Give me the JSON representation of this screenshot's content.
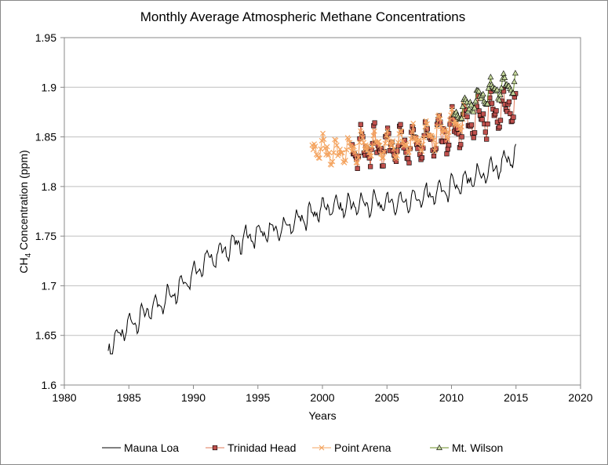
{
  "chart_data": {
    "type": "line",
    "title": "Monthly  Average Atmospheric Methane  Concentrations",
    "xlabel": "Years",
    "ylabel_prefix": "CH",
    "ylabel_subscript": "4",
    "ylabel_suffix": " Concentration  (ppm)",
    "xlim": [
      1980,
      2020
    ],
    "ylim": [
      1.6,
      1.95
    ],
    "x_ticks": [
      "1980",
      "1985",
      "1990",
      "1995",
      "2000",
      "2005",
      "2010",
      "2015",
      "2020"
    ],
    "y_ticks": [
      "1.6",
      "1.65",
      "1.7",
      "1.75",
      "1.8",
      "1.85",
      "1.9",
      "1.95"
    ],
    "grid": "horizontal",
    "legend_position": "bottom",
    "series": [
      {
        "name": "Mauna Loa",
        "color": "#000000",
        "marker": "none",
        "trend": [
          [
            1983.4,
            1.638
          ],
          [
            1985,
            1.66
          ],
          [
            1988,
            1.688
          ],
          [
            1991,
            1.725
          ],
          [
            1994,
            1.748
          ],
          [
            1997,
            1.758
          ],
          [
            2000,
            1.778
          ],
          [
            2003,
            1.782
          ],
          [
            2006,
            1.784
          ],
          [
            2008,
            1.79
          ],
          [
            2011,
            1.803
          ],
          [
            2014,
            1.823
          ],
          [
            2015,
            1.832
          ]
        ],
        "amplitude": 0.013
      },
      {
        "name": "Trinidad Head",
        "color": "#e0785a",
        "marker_fill": "#c0504d",
        "marker": "square",
        "trend": [
          [
            2002.3,
            1.838
          ],
          [
            2004,
            1.84
          ],
          [
            2006,
            1.84
          ],
          [
            2008,
            1.845
          ],
          [
            2010,
            1.856
          ],
          [
            2012,
            1.868
          ],
          [
            2014,
            1.878
          ],
          [
            2015,
            1.882
          ]
        ],
        "amplitude": 0.022
      },
      {
        "name": "Point Arena",
        "color": "#f4a460",
        "marker_fill": "#f4a460",
        "marker": "x",
        "trend": [
          [
            1999.2,
            1.84
          ],
          [
            2001,
            1.833
          ],
          [
            2003,
            1.84
          ],
          [
            2005,
            1.842
          ],
          [
            2007,
            1.845
          ],
          [
            2009,
            1.855
          ],
          [
            2011,
            1.868
          ]
        ],
        "amplitude": 0.016
      },
      {
        "name": "Mt. Wilson",
        "color": "#6b8e23",
        "marker_fill": "#c4d79b",
        "marker": "triangle",
        "trend": [
          [
            2010.2,
            1.872
          ],
          [
            2012,
            1.886
          ],
          [
            2013.5,
            1.898
          ],
          [
            2015,
            1.905
          ]
        ],
        "amplitude": 0.014
      }
    ]
  }
}
